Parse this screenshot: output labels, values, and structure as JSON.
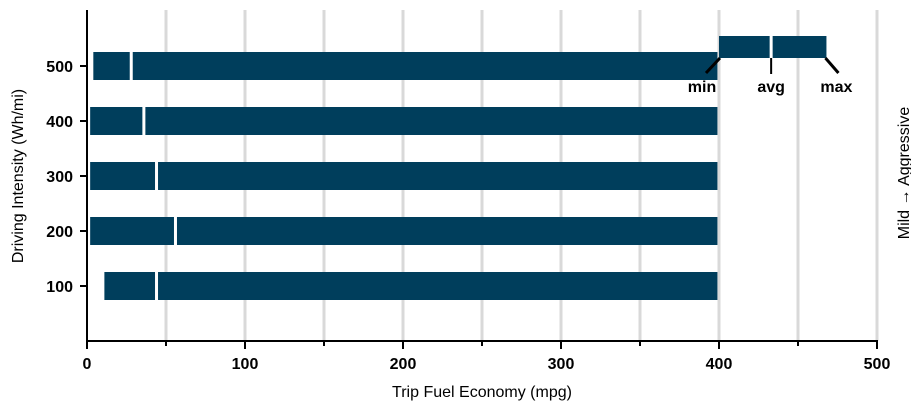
{
  "chart_data": {
    "type": "bar",
    "subtype": "range-bar",
    "xlabel": "Trip Fuel Economy (mpg)",
    "ylabel": "Driving  Intensity (Wh/mi)",
    "right_label": "Mild → Aggressive",
    "xlim": [
      0,
      500
    ],
    "x_ticks": [
      0,
      100,
      200,
      300,
      400,
      500
    ],
    "grid": "vertical",
    "bar_color": "#003e5c",
    "series": [
      {
        "category": "100",
        "min": 11,
        "avg": 44,
        "max": 399
      },
      {
        "category": "200",
        "min": 2,
        "avg": 56,
        "max": 399
      },
      {
        "category": "300",
        "min": 2,
        "avg": 44,
        "max": 399
      },
      {
        "category": "400",
        "min": 2,
        "avg": 36,
        "max": 399
      },
      {
        "category": "500",
        "min": 4,
        "avg": 28,
        "max": 399
      }
    ],
    "legend": {
      "placement": "top-right",
      "min_value": 400,
      "avg_value": 433,
      "max_value": 468,
      "labels": {
        "min": "min",
        "avg": "avg",
        "max": "max"
      }
    }
  }
}
